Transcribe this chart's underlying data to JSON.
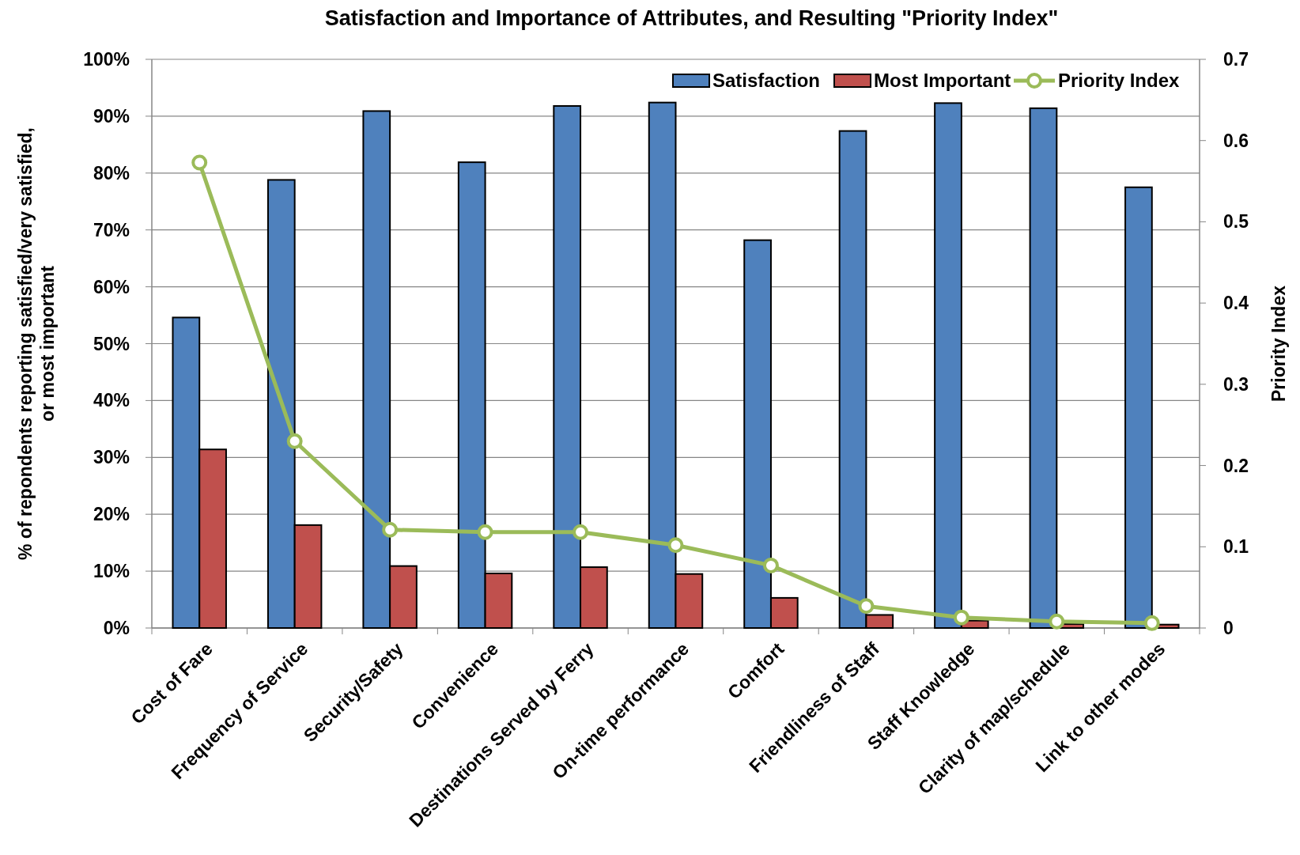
{
  "chart_data": {
    "type": "bar",
    "title": "Satisfaction and Importance of Attributes, and Resulting \"Priority Index\"",
    "ylabel": "% of repondents  reporting satisfied/very satisfied,\nor most important",
    "y2label": "Priority Index",
    "categories": [
      "Cost of Fare",
      "Frequency of Service",
      "Security/Safety",
      "Convenience",
      "Destinations Served by Ferry",
      "On-time performance",
      "Comfort",
      "Friendliness of Staff",
      "Staff Knowledge",
      "Clarity of map/schedule",
      "Link to other modes"
    ],
    "series": [
      {
        "name": "Satisfaction",
        "color": "#4f81bd",
        "values": [
          54.6,
          78.8,
          90.9,
          81.9,
          91.8,
          92.4,
          68.2,
          87.4,
          92.3,
          91.4,
          77.5
        ]
      },
      {
        "name": "Most Important",
        "color": "#c0504d",
        "values": [
          31.4,
          18.1,
          10.9,
          9.6,
          10.7,
          9.5,
          5.3,
          2.3,
          1.3,
          0.7,
          0.6
        ]
      },
      {
        "name": "Priority Index",
        "type": "line",
        "axis": "y2",
        "color": "#9bbb59",
        "marker": "circle",
        "values": [
          0.573,
          0.23,
          0.121,
          0.118,
          0.118,
          0.102,
          0.077,
          0.027,
          0.013,
          0.008,
          0.006
        ]
      }
    ],
    "ylim": [
      0,
      100
    ],
    "yticks": [
      {
        "value": 0,
        "label": "0%"
      },
      {
        "value": 10,
        "label": "10%"
      },
      {
        "value": 20,
        "label": "20%"
      },
      {
        "value": 30,
        "label": "30%"
      },
      {
        "value": 40,
        "label": "40%"
      },
      {
        "value": 50,
        "label": "50%"
      },
      {
        "value": 60,
        "label": "60%"
      },
      {
        "value": 70,
        "label": "70%"
      },
      {
        "value": 80,
        "label": "80%"
      },
      {
        "value": 90,
        "label": "90%"
      },
      {
        "value": 100,
        "label": "100%"
      }
    ],
    "y2lim": [
      0,
      0.7
    ],
    "y2ticks": [
      0,
      0.1,
      0.2,
      0.3,
      0.4,
      0.5,
      0.6,
      0.7
    ],
    "grid": "y",
    "legend": "top right"
  }
}
